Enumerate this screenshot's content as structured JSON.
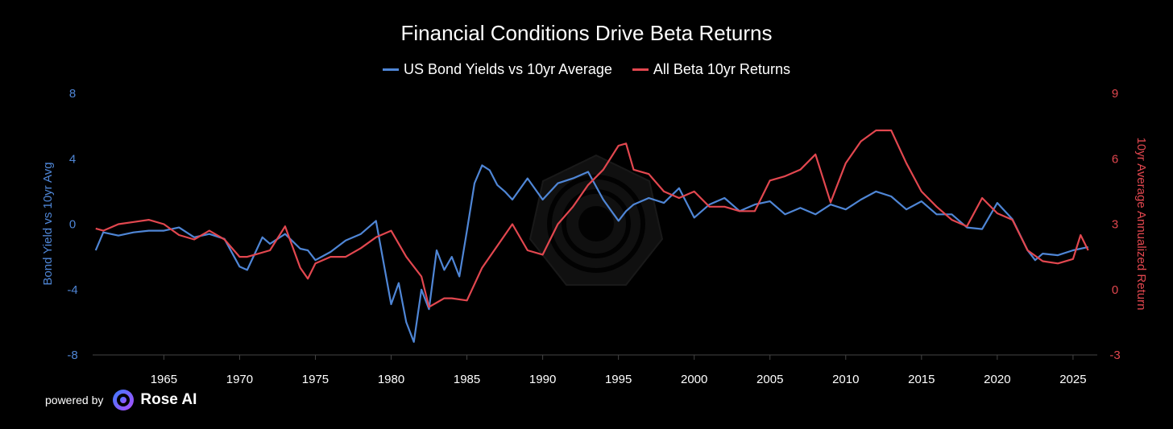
{
  "colors": {
    "background": "#000000",
    "bond": "#4f86d6",
    "beta": "#e2474f",
    "axis": "#444444",
    "text": "#ffffff"
  },
  "chart_data": {
    "type": "line",
    "title": "Financial Conditions Drive Beta Returns",
    "xlabel": "",
    "x_ticks": [
      "1965",
      "1970",
      "1975",
      "1980",
      "1985",
      "1990",
      "1995",
      "2000",
      "2005",
      "2010",
      "2015",
      "2020",
      "2025"
    ],
    "xlim": [
      1960.3,
      2026.6
    ],
    "y_left": {
      "label": "Bond Yield vs 10yr Avg",
      "ticks": [
        "8",
        "4",
        "0",
        "-4",
        "-8"
      ],
      "range": [
        -8,
        8
      ]
    },
    "y_right": {
      "label": "10yr Average Annualized Return",
      "ticks": [
        "9",
        "6",
        "3",
        "0",
        "-3"
      ],
      "range": [
        -3,
        9
      ]
    },
    "series": [
      {
        "name": "US Bond Yields vs 10yr Average",
        "axis": "left",
        "x": [
          1960.5,
          1961,
          1962,
          1963,
          1964,
          1965,
          1966,
          1967,
          1968,
          1969,
          1970,
          1970.5,
          1971,
          1971.5,
          1972,
          1973,
          1974,
          1974.5,
          1975,
          1976,
          1977,
          1978,
          1979,
          1980,
          1980.5,
          1981,
          1981.5,
          1982,
          1982.5,
          1983,
          1983.5,
          1984,
          1984.5,
          1985,
          1985.5,
          1986,
          1986.5,
          1987,
          1987.5,
          1988,
          1989,
          1990,
          1991,
          1992,
          1993,
          1994,
          1995,
          1995.5,
          1996,
          1997,
          1998,
          1999,
          2000,
          2001,
          2002,
          2003,
          2004,
          2005,
          2006,
          2007,
          2008,
          2009,
          2010,
          2011,
          2012,
          2013,
          2014,
          2015,
          2016,
          2017,
          2018,
          2019,
          2020,
          2021,
          2022,
          2022.5,
          2023,
          2024,
          2025,
          2026
        ],
        "values": [
          -1.6,
          -0.5,
          -0.7,
          -0.5,
          -0.4,
          -0.4,
          -0.2,
          -0.8,
          -0.6,
          -0.9,
          -2.6,
          -2.8,
          -1.8,
          -0.8,
          -1.2,
          -0.6,
          -1.5,
          -1.6,
          -2.2,
          -1.7,
          -1.0,
          -0.6,
          0.2,
          -4.9,
          -3.6,
          -6.0,
          -7.2,
          -4.0,
          -5.2,
          -1.6,
          -2.8,
          -2.0,
          -3.2,
          -0.4,
          2.5,
          3.6,
          3.3,
          2.4,
          2.0,
          1.5,
          2.8,
          1.5,
          2.5,
          2.8,
          3.2,
          1.5,
          0.2,
          0.8,
          1.2,
          1.6,
          1.3,
          2.2,
          0.4,
          1.2,
          1.6,
          0.8,
          1.2,
          1.4,
          0.6,
          1.0,
          0.6,
          1.2,
          0.9,
          1.5,
          2.0,
          1.7,
          0.9,
          1.4,
          0.6,
          0.6,
          -0.2,
          -0.3,
          1.3,
          0.3,
          -1.6,
          -2.2,
          -1.8,
          -1.9,
          -1.6,
          -1.4
        ]
      },
      {
        "name": "All Beta 10yr Returns",
        "axis": "right",
        "x": [
          1960.5,
          1961,
          1962,
          1963,
          1964,
          1965,
          1966,
          1967,
          1968,
          1969,
          1970,
          1970.5,
          1971,
          1972,
          1973,
          1974,
          1974.5,
          1975,
          1976,
          1977,
          1978,
          1979,
          1980,
          1981,
          1982,
          1982.5,
          1983,
          1983.5,
          1984,
          1985,
          1986,
          1987,
          1988,
          1989,
          1990,
          1991,
          1992,
          1993,
          1994,
          1995,
          1995.5,
          1996,
          1997,
          1998,
          1999,
          2000,
          2001,
          2002,
          2003,
          2004,
          2005,
          2006,
          2007,
          2008,
          2009,
          2010,
          2011,
          2012,
          2013,
          2014,
          2015,
          2016,
          2017,
          2018,
          2019,
          2020,
          2021,
          2022,
          2023,
          2024,
          2025,
          2025.5,
          2026
        ],
        "values": [
          2.8,
          2.7,
          3.0,
          3.1,
          3.2,
          3.0,
          2.5,
          2.3,
          2.7,
          2.3,
          1.5,
          1.5,
          1.6,
          1.8,
          2.9,
          1.0,
          0.5,
          1.2,
          1.5,
          1.5,
          1.9,
          2.4,
          2.7,
          1.5,
          0.6,
          -0.8,
          -0.6,
          -0.4,
          -0.4,
          -0.5,
          1.0,
          2.0,
          3.0,
          1.8,
          1.6,
          3.0,
          3.8,
          4.8,
          5.5,
          6.6,
          6.7,
          5.5,
          5.3,
          4.5,
          4.2,
          4.5,
          3.8,
          3.8,
          3.6,
          3.6,
          5.0,
          5.2,
          5.5,
          6.2,
          4.0,
          5.8,
          6.8,
          7.3,
          7.3,
          5.8,
          4.5,
          3.8,
          3.2,
          2.9,
          4.2,
          3.5,
          3.2,
          1.8,
          1.3,
          1.2,
          1.4,
          2.5,
          1.8
        ]
      }
    ]
  },
  "footer": {
    "powered_by": "powered by",
    "brand": "Rose AI"
  }
}
